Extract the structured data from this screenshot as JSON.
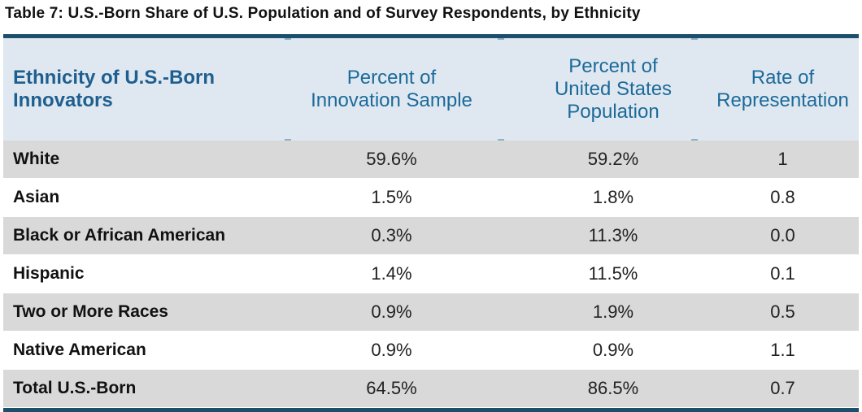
{
  "caption": "Table 7: U.S.-Born Share of U.S. Population and of Survey Respondents, by Ethnicity",
  "table": {
    "headers": [
      [
        "Ethnicity of U.S.-Born",
        "Innovators"
      ],
      [
        "Percent of",
        "Innovation Sample"
      ],
      [
        "Percent of",
        "United States",
        "Population"
      ],
      [
        "Rate of",
        "Representation"
      ]
    ],
    "rows": [
      {
        "ethnicity": "White",
        "sample": "59.6%",
        "population": "59.2%",
        "rate": "1"
      },
      {
        "ethnicity": "Asian",
        "sample": "1.5%",
        "population": "1.8%",
        "rate": "0.8"
      },
      {
        "ethnicity": "Black or African American",
        "sample": "0.3%",
        "population": "11.3%",
        "rate": "0.0"
      },
      {
        "ethnicity": "Hispanic",
        "sample": "1.4%",
        "population": "11.5%",
        "rate": "0.1"
      },
      {
        "ethnicity": "Two or More Races",
        "sample": "0.9%",
        "population": "1.9%",
        "rate": "0.5"
      },
      {
        "ethnicity": "Native American",
        "sample": "0.9%",
        "population": "0.9%",
        "rate": "1.1"
      },
      {
        "ethnicity": "Total U.S.-Born",
        "sample": "64.5%",
        "population": "86.5%",
        "rate": "0.7"
      }
    ]
  },
  "colors": {
    "rule": "#1c4f6b",
    "header_bg": "#dfe8f0",
    "header_text": "#1c6a9a",
    "shade_row": "#d9d9d9"
  }
}
